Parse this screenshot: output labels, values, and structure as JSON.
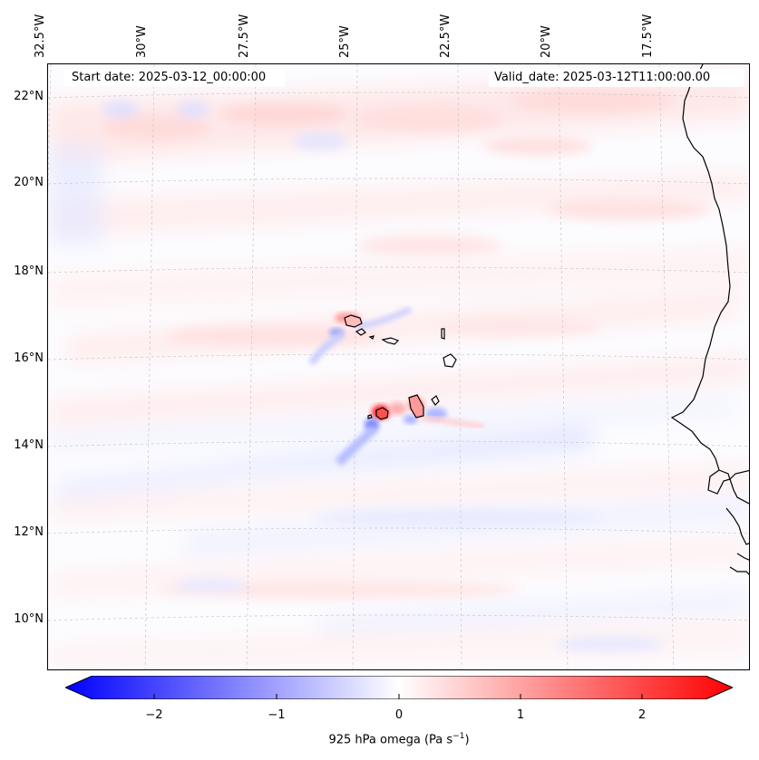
{
  "header": {
    "start_date": "Start date: 2025-03-12_00:00:00",
    "valid_date": "Valid_date: 2025-03-12T11:00:00.00"
  },
  "axes": {
    "lon_labels": [
      "32.5°W",
      "30°W",
      "27.5°W",
      "25°W",
      "22.5°W",
      "20°W",
      "17.5°W"
    ],
    "lat_labels": [
      "22°N",
      "20°N",
      "18°N",
      "16°N",
      "14°N",
      "12°N",
      "10°N"
    ]
  },
  "colorbar": {
    "tick_labels": [
      "−2",
      "−1",
      "0",
      "1",
      "2"
    ],
    "title_main": "925 hPa omega (Pa s",
    "title_sup": "−1",
    "title_end": ")",
    "cmap": "bwr",
    "vmin": -2.7,
    "vmax": 2.7,
    "neg_color": "#0000ff",
    "pos_color": "#ff0000"
  },
  "map": {
    "variable": "925 hPa omega",
    "projection": "lambert-conformal",
    "extent_lon": [
      -33.0,
      -16.0
    ],
    "extent_lat": [
      8.8,
      22.8
    ],
    "land_color": "#ffffff",
    "coast_color": "#000000",
    "grid_color": "#cccccc"
  }
}
